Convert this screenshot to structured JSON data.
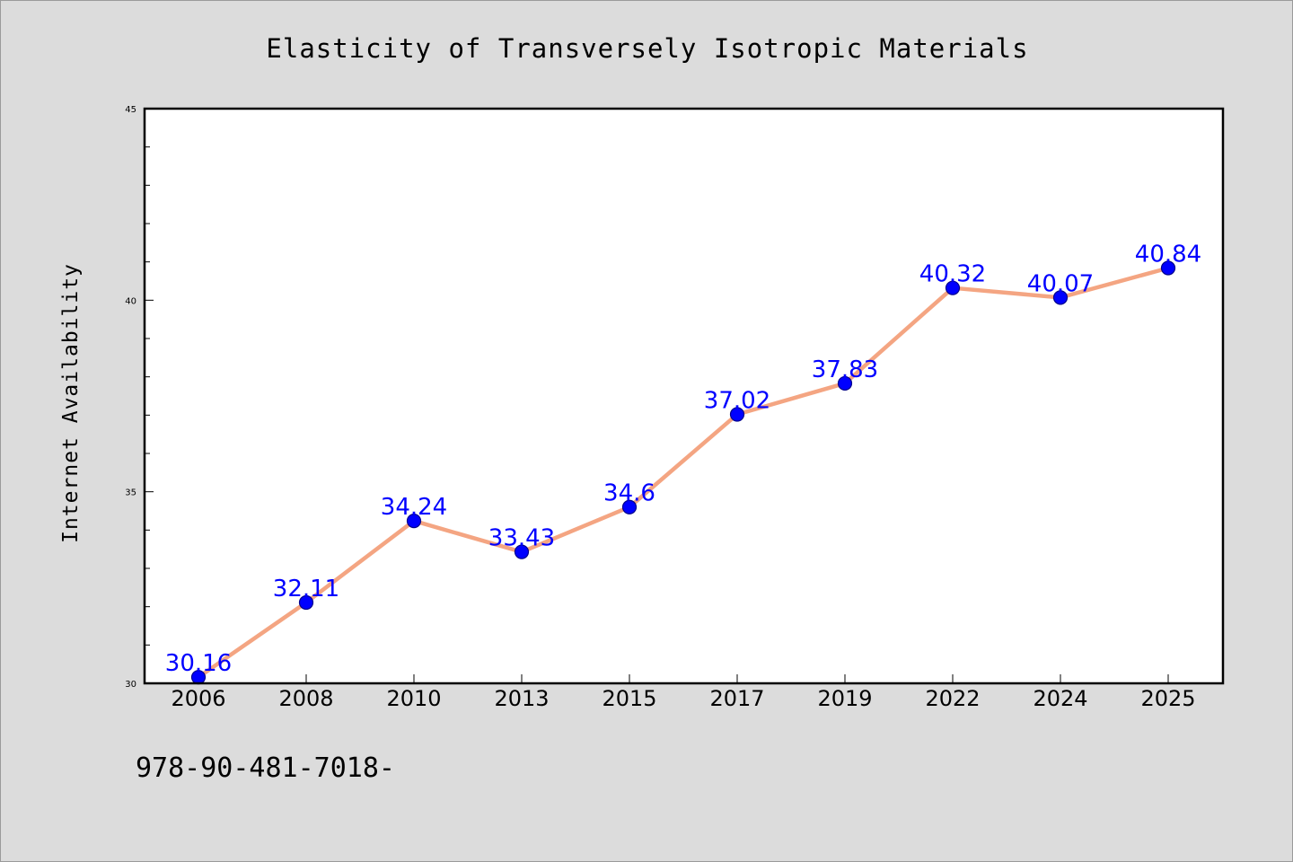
{
  "chart_data": {
    "type": "line",
    "title": "Elasticity of Transversely Isotropic Materials",
    "xlabel": "",
    "ylabel": "Internet Availability",
    "categories": [
      "2006",
      "2008",
      "2010",
      "2013",
      "2015",
      "2017",
      "2019",
      "2022",
      "2024",
      "2025"
    ],
    "series": [
      {
        "values": [
          30.16,
          32.11,
          34.24,
          33.43,
          34.6,
          37.02,
          37.83,
          40.32,
          40.07,
          40.84
        ],
        "labels": [
          "30.16",
          "32.11",
          "34.24",
          "33.43",
          "34.6",
          "37.02",
          "37.83",
          "40.32",
          "40.07",
          "40.84"
        ]
      }
    ],
    "ylim": [
      30,
      45
    ],
    "yticks": [
      30,
      35,
      40,
      45
    ],
    "ytick_labels": [
      "30",
      "35",
      "40",
      "45"
    ],
    "grid": false,
    "legend": "none",
    "colors": {
      "line": "#f4a582",
      "marker": "#0000ff",
      "marker_edge": "#00008b",
      "data_label": "#0000ff"
    }
  },
  "footer_text": "978-90-481-7018-"
}
